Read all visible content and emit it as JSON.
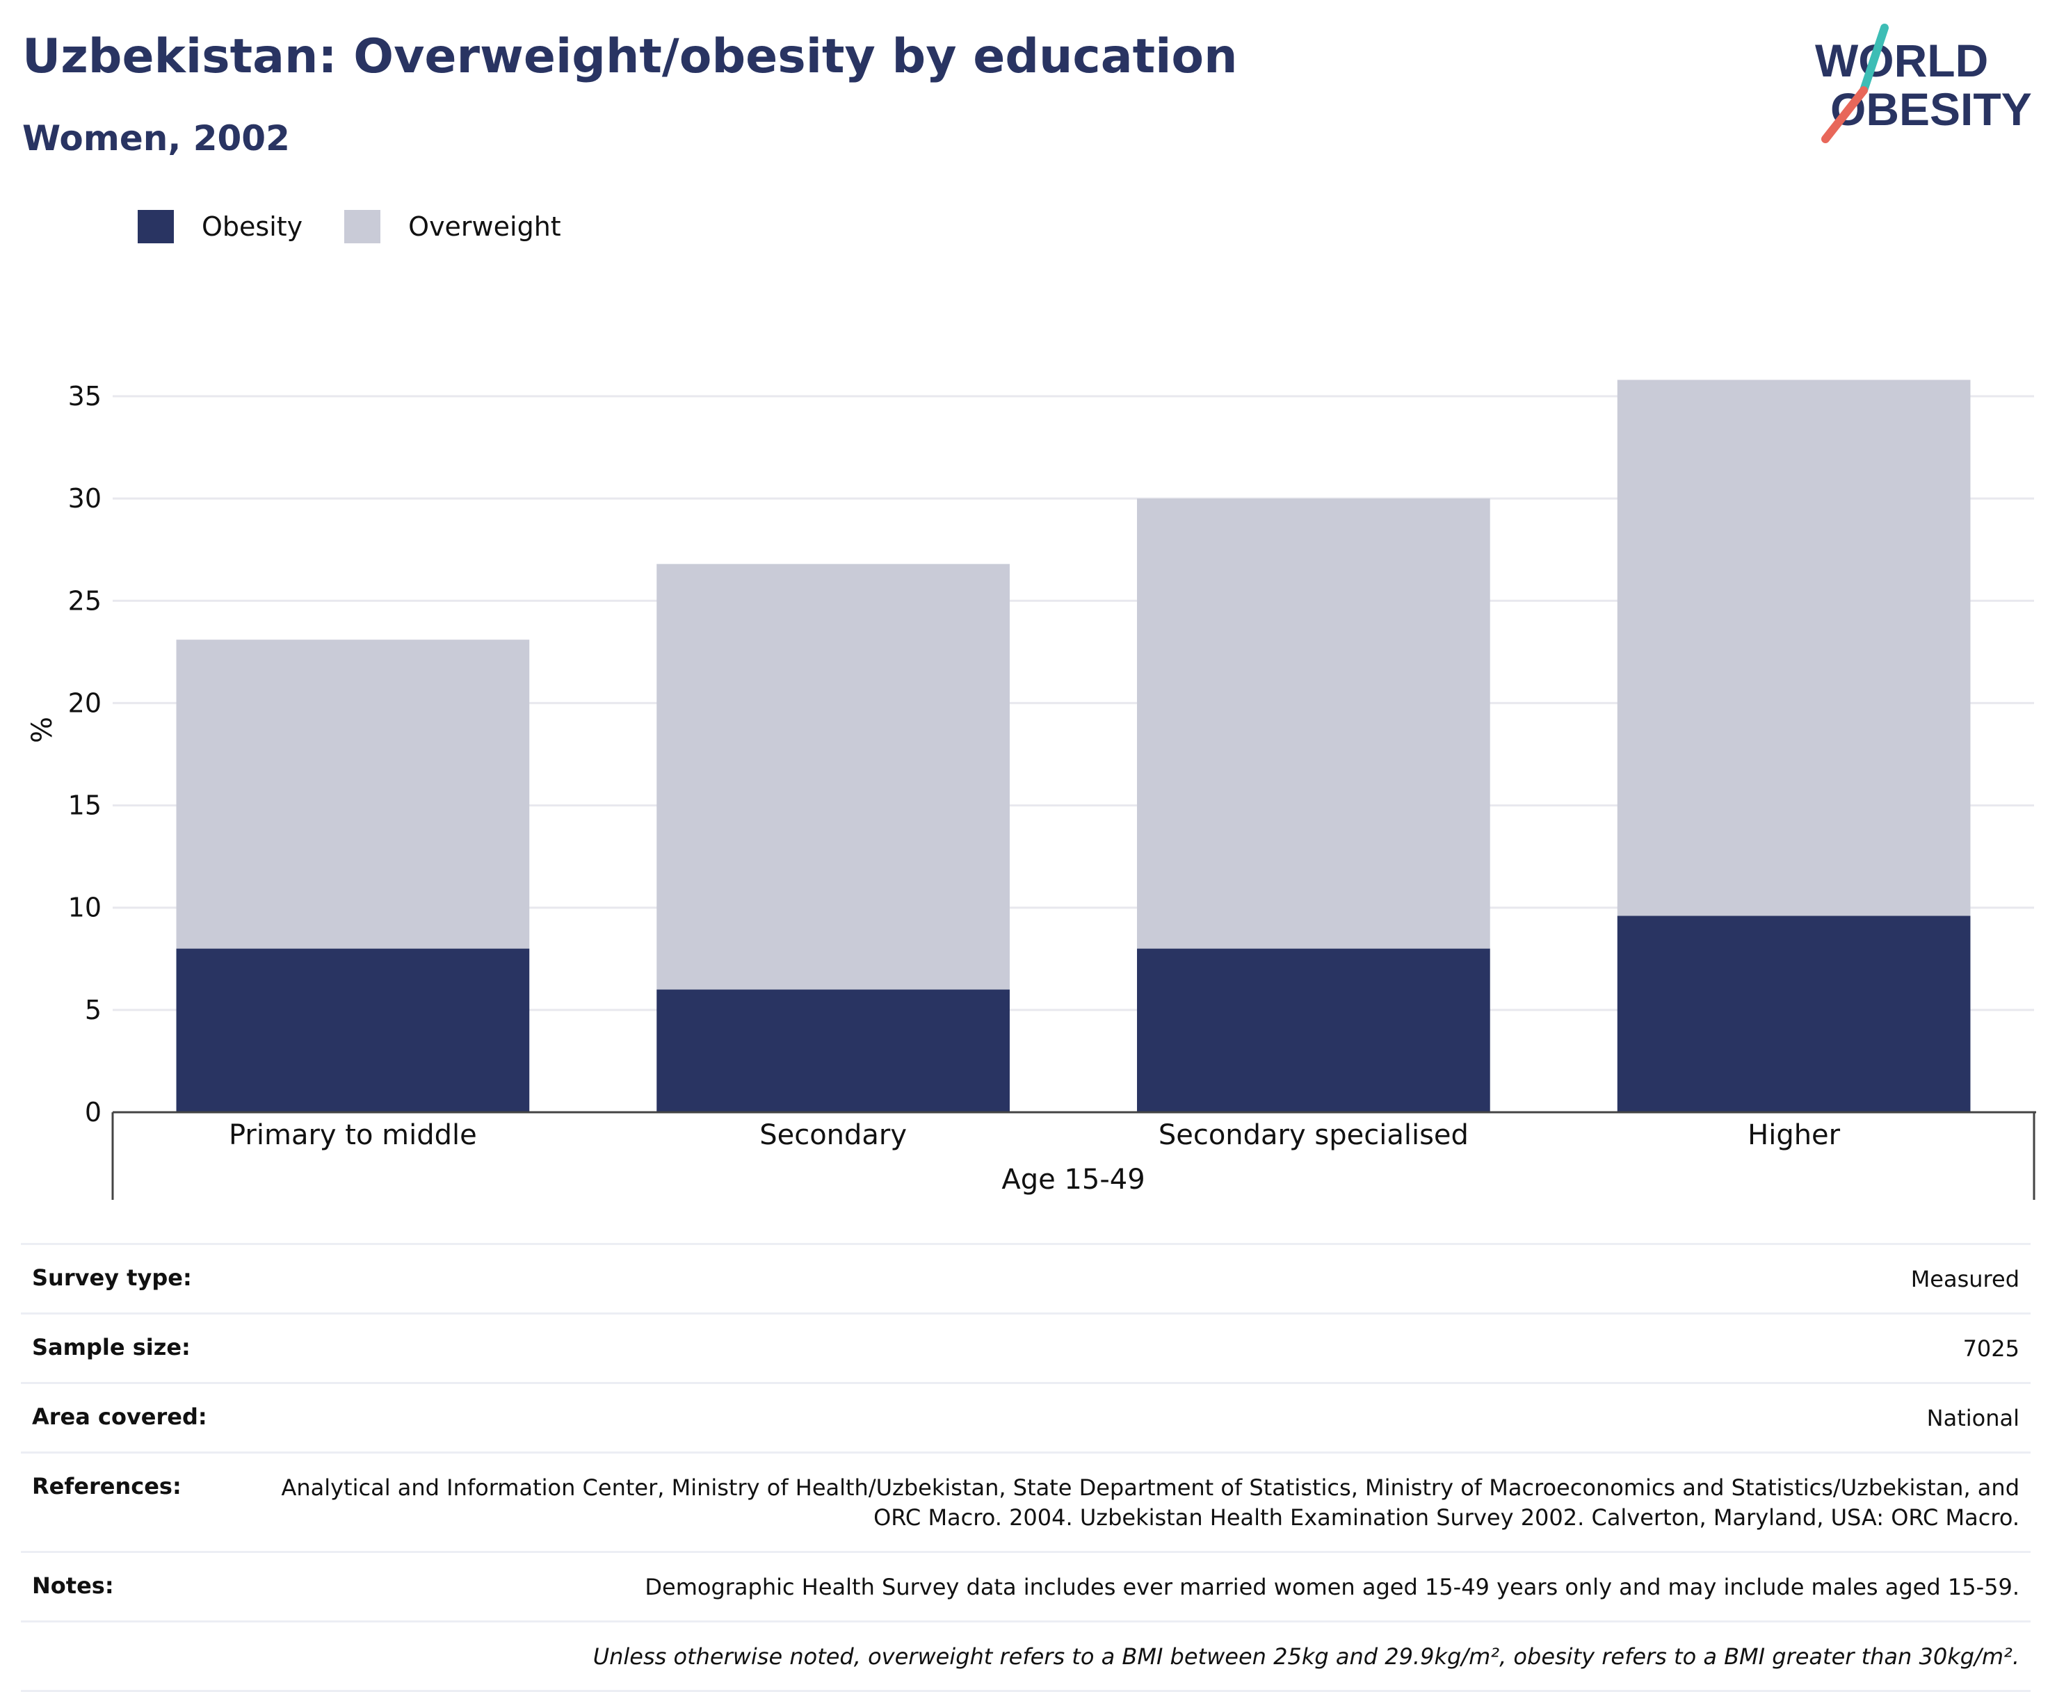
{
  "header": {
    "title": "Uzbekistan: Overweight/obesity by education",
    "subtitle": "Women, 2002"
  },
  "logo": {
    "line1": "WORLD",
    "line2": "OBESITY",
    "colors": {
      "text": "#293462",
      "slash_top": "#3dbdb5",
      "slash_bottom": "#e8675a"
    }
  },
  "legend": [
    {
      "label": "Obesity",
      "color": "#293462"
    },
    {
      "label": "Overweight",
      "color": "#c9cbd7"
    }
  ],
  "chart_data": {
    "type": "bar",
    "stacked": true,
    "categories": [
      "Primary to middle",
      "Secondary",
      "Secondary specialised",
      "Higher"
    ],
    "group_label": "Age 15-49",
    "series": [
      {
        "name": "Obesity",
        "color": "#293462",
        "values": [
          8.0,
          6.0,
          8.0,
          9.6
        ]
      },
      {
        "name": "Overweight",
        "color": "#c9cbd7",
        "values": [
          15.1,
          20.8,
          22.0,
          26.2
        ]
      }
    ],
    "ylabel": "%",
    "ylim": [
      0,
      35
    ],
    "yticks": [
      0,
      5,
      10,
      15,
      20,
      25,
      30,
      35
    ],
    "grid": true,
    "legend_position": "top-left"
  },
  "info": [
    {
      "label": "Survey type:",
      "value": "Measured"
    },
    {
      "label": "Sample size:",
      "value": "7025"
    },
    {
      "label": "Area covered:",
      "value": "National"
    },
    {
      "label": "References:",
      "value": "Analytical and Information Center, Ministry of Health/Uzbekistan, State Department of Statistics, Ministry of Macroeconomics and Statistics/Uzbekistan, and ORC Macro. 2004. Uzbekistan Health Examination Survey 2002. Calverton, Maryland, USA: ORC Macro."
    },
    {
      "label": "Notes:",
      "value": "Demographic Health Survey data includes ever married women aged 15-49 years only and may include males aged 15-59."
    },
    {
      "label": "",
      "value": "Unless otherwise noted, overweight refers to a BMI between 25kg and 29.9kg/m², obesity refers to a BMI greater than 30kg/m²."
    }
  ]
}
